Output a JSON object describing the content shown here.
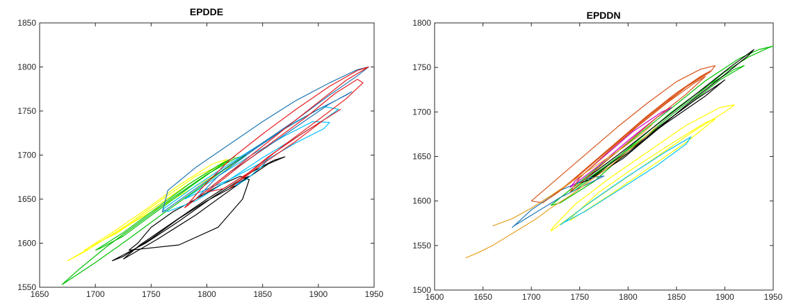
{
  "chart_data": [
    {
      "type": "line",
      "title": "EPDDE",
      "xlabel": "",
      "ylabel": "",
      "xlim": [
        1650,
        1950
      ],
      "ylim": [
        1550,
        1850
      ],
      "xticks": [
        1650,
        1700,
        1750,
        1800,
        1850,
        1900,
        1950
      ],
      "yticks": [
        1550,
        1600,
        1650,
        1700,
        1750,
        1800,
        1850
      ],
      "grid": false,
      "series": [
        {
          "color": "#ffff00",
          "x": [
            1675,
            1700,
            1730,
            1760,
            1790,
            1815,
            1822,
            1800,
            1770,
            1740,
            1710,
            1690,
            1675
          ],
          "y": [
            1580,
            1598,
            1622,
            1650,
            1676,
            1690,
            1688,
            1672,
            1650,
            1628,
            1606,
            1590,
            1580
          ]
        },
        {
          "color": "#ffff00",
          "x": [
            1690,
            1715,
            1745,
            1775,
            1805,
            1818,
            1808,
            1780,
            1750,
            1720,
            1695,
            1690
          ],
          "y": [
            1592,
            1612,
            1638,
            1666,
            1690,
            1695,
            1686,
            1664,
            1638,
            1612,
            1596,
            1592
          ]
        },
        {
          "color": "#00c000",
          "x": [
            1670,
            1700,
            1730,
            1760,
            1790,
            1815,
            1835,
            1825,
            1800,
            1770,
            1740,
            1710,
            1685,
            1670
          ],
          "y": [
            1553,
            1578,
            1605,
            1633,
            1660,
            1683,
            1700,
            1696,
            1678,
            1652,
            1624,
            1596,
            1570,
            1553
          ]
        },
        {
          "color": "#00c000",
          "x": [
            1700,
            1725,
            1755,
            1785,
            1810,
            1825,
            1812,
            1785,
            1755,
            1725,
            1704,
            1700
          ],
          "y": [
            1592,
            1612,
            1640,
            1668,
            1688,
            1698,
            1688,
            1664,
            1636,
            1608,
            1594,
            1592
          ]
        },
        {
          "color": "#000000",
          "x": [
            1715,
            1745,
            1775,
            1805,
            1830,
            1838,
            1825,
            1800,
            1775,
            1750,
            1725,
            1715
          ],
          "y": [
            1580,
            1600,
            1625,
            1652,
            1672,
            1676,
            1665,
            1648,
            1628,
            1605,
            1585,
            1580
          ]
        },
        {
          "color": "#000000",
          "x": [
            1730,
            1775,
            1810,
            1832,
            1838,
            1830,
            1812,
            1790,
            1770,
            1750,
            1738,
            1730
          ],
          "y": [
            1592,
            1598,
            1618,
            1650,
            1672,
            1676,
            1666,
            1650,
            1636,
            1618,
            1600,
            1592
          ]
        },
        {
          "color": "#000000",
          "x": [
            1725,
            1755,
            1790,
            1825,
            1855,
            1870,
            1860,
            1830,
            1800,
            1770,
            1740,
            1725
          ],
          "y": [
            1582,
            1604,
            1632,
            1664,
            1690,
            1698,
            1694,
            1674,
            1650,
            1624,
            1598,
            1582
          ]
        },
        {
          "color": "#00bfff",
          "x": [
            1760,
            1790,
            1820,
            1850,
            1880,
            1905,
            1918,
            1905,
            1880,
            1850,
            1820,
            1790,
            1765,
            1760
          ],
          "y": [
            1638,
            1665,
            1690,
            1714,
            1738,
            1755,
            1752,
            1740,
            1720,
            1697,
            1672,
            1648,
            1636,
            1638
          ]
        },
        {
          "color": "#00bfff",
          "x": [
            1780,
            1810,
            1840,
            1870,
            1895,
            1910,
            1905,
            1880,
            1850,
            1820,
            1790,
            1780
          ],
          "y": [
            1650,
            1676,
            1700,
            1722,
            1738,
            1737,
            1730,
            1714,
            1692,
            1672,
            1656,
            1650
          ]
        },
        {
          "color": "#00bfff",
          "x": [
            1825,
            1845,
            1855,
            1850,
            1835,
            1825
          ],
          "y": [
            1665,
            1688,
            1695,
            1688,
            1672,
            1665
          ]
        },
        {
          "color": "#1f77b4",
          "x": [
            1760,
            1790,
            1820,
            1850,
            1880,
            1910,
            1935,
            1945,
            1935,
            1910,
            1880,
            1850,
            1820,
            1790,
            1765,
            1760
          ],
          "y": [
            1635,
            1662,
            1688,
            1714,
            1740,
            1768,
            1790,
            1800,
            1797,
            1782,
            1762,
            1738,
            1712,
            1686,
            1660,
            1635
          ]
        },
        {
          "color": "#1f77b4",
          "x": [
            1790,
            1820,
            1850,
            1880,
            1910,
            1930,
            1925,
            1900,
            1870,
            1840,
            1810,
            1790
          ],
          "y": [
            1650,
            1680,
            1706,
            1732,
            1758,
            1772,
            1768,
            1752,
            1730,
            1704,
            1676,
            1650
          ]
        },
        {
          "color": "#e41a1c",
          "x": [
            1780,
            1810,
            1840,
            1870,
            1900,
            1925,
            1945,
            1935,
            1910,
            1880,
            1850,
            1820,
            1795,
            1780
          ],
          "y": [
            1640,
            1670,
            1700,
            1730,
            1760,
            1785,
            1800,
            1796,
            1778,
            1752,
            1724,
            1694,
            1662,
            1640
          ]
        },
        {
          "color": "#e41a1c",
          "x": [
            1800,
            1830,
            1860,
            1890,
            1915,
            1935,
            1940,
            1925,
            1900,
            1870,
            1840,
            1815,
            1800
          ],
          "y": [
            1658,
            1688,
            1716,
            1744,
            1770,
            1786,
            1782,
            1764,
            1740,
            1712,
            1682,
            1662,
            1658
          ]
        },
        {
          "color": "#e41a1c",
          "x": [
            1820,
            1850,
            1880,
            1905,
            1920,
            1910,
            1885,
            1855,
            1830,
            1820
          ],
          "y": [
            1662,
            1690,
            1716,
            1740,
            1752,
            1744,
            1724,
            1698,
            1672,
            1662
          ]
        }
      ]
    },
    {
      "type": "line",
      "title": "EPDDN",
      "xlabel": "",
      "ylabel": "",
      "xlim": [
        1600,
        1950
      ],
      "ylim": [
        1500,
        1800
      ],
      "xticks": [
        1600,
        1650,
        1700,
        1750,
        1800,
        1850,
        1900,
        1950
      ],
      "yticks": [
        1500,
        1550,
        1600,
        1650,
        1700,
        1750,
        1800
      ],
      "grid": false,
      "series": [
        {
          "color": "#00c000",
          "x": [
            1720,
            1760,
            1800,
            1840,
            1880,
            1915,
            1935,
            1950,
            1945,
            1925,
            1900,
            1870,
            1835,
            1800,
            1765,
            1730,
            1720
          ],
          "y": [
            1595,
            1630,
            1665,
            1700,
            1735,
            1760,
            1770,
            1774,
            1772,
            1762,
            1745,
            1718,
            1688,
            1656,
            1622,
            1598,
            1595
          ]
        },
        {
          "color": "#00c000",
          "x": [
            1740,
            1780,
            1820,
            1860,
            1895,
            1920,
            1910,
            1880,
            1845,
            1810,
            1775,
            1745,
            1740
          ],
          "y": [
            1610,
            1642,
            1674,
            1706,
            1736,
            1752,
            1748,
            1728,
            1700,
            1668,
            1636,
            1612,
            1610
          ]
        },
        {
          "color": "#000000",
          "x": [
            1750,
            1790,
            1830,
            1870,
            1905,
            1930,
            1925,
            1900,
            1865,
            1830,
            1795,
            1760,
            1750
          ],
          "y": [
            1620,
            1652,
            1686,
            1720,
            1750,
            1770,
            1764,
            1742,
            1712,
            1680,
            1648,
            1624,
            1620
          ]
        },
        {
          "color": "#000000",
          "x": [
            1760,
            1800,
            1840,
            1880,
            1900,
            1895,
            1870,
            1835,
            1800,
            1770,
            1760
          ],
          "y": [
            1625,
            1656,
            1688,
            1718,
            1736,
            1732,
            1714,
            1686,
            1654,
            1630,
            1625
          ]
        },
        {
          "color": "#ffff00",
          "x": [
            1720,
            1750,
            1790,
            1830,
            1870,
            1900,
            1910,
            1895,
            1860,
            1820,
            1780,
            1745,
            1722,
            1720
          ],
          "y": [
            1566,
            1590,
            1620,
            1650,
            1680,
            1700,
            1708,
            1705,
            1685,
            1655,
            1625,
            1596,
            1570,
            1566
          ]
        },
        {
          "color": "#ffff00",
          "x": [
            1740,
            1780,
            1820,
            1860,
            1890,
            1880,
            1850,
            1810,
            1770,
            1742,
            1740
          ],
          "y": [
            1578,
            1606,
            1636,
            1666,
            1692,
            1688,
            1668,
            1640,
            1610,
            1582,
            1578
          ]
        },
        {
          "color": "#00bfff",
          "x": [
            1730,
            1760,
            1800,
            1840,
            1865,
            1860,
            1830,
            1790,
            1755,
            1732,
            1730
          ],
          "y": [
            1573,
            1598,
            1628,
            1656,
            1672,
            1664,
            1640,
            1612,
            1588,
            1575,
            1573
          ]
        },
        {
          "color": "#1f77b4",
          "x": [
            1680,
            1700,
            1730,
            1760,
            1775,
            1760,
            1730,
            1700,
            1682,
            1680
          ],
          "y": [
            1570,
            1590,
            1612,
            1626,
            1628,
            1620,
            1604,
            1584,
            1572,
            1570
          ]
        },
        {
          "color": "#cc00cc",
          "x": [
            1740,
            1770,
            1800,
            1830,
            1845,
            1835,
            1805,
            1775,
            1745,
            1740
          ],
          "y": [
            1615,
            1640,
            1668,
            1694,
            1705,
            1700,
            1678,
            1650,
            1622,
            1615
          ]
        },
        {
          "color": "#d95319",
          "x": [
            1700,
            1730,
            1760,
            1790,
            1820,
            1850,
            1875,
            1890,
            1885,
            1860,
            1830,
            1800,
            1770,
            1740,
            1712,
            1700
          ],
          "y": [
            1600,
            1628,
            1656,
            1684,
            1710,
            1734,
            1748,
            1752,
            1745,
            1728,
            1702,
            1676,
            1648,
            1620,
            1598,
            1600
          ]
        },
        {
          "color": "#d95319",
          "x": [
            1720,
            1750,
            1780,
            1810,
            1840,
            1870,
            1885,
            1875,
            1848,
            1818,
            1788,
            1758,
            1728,
            1720
          ],
          "y": [
            1604,
            1630,
            1658,
            1686,
            1712,
            1736,
            1746,
            1740,
            1720,
            1694,
            1666,
            1638,
            1610,
            1604
          ]
        },
        {
          "color": "#d95319",
          "x": [
            1740,
            1770,
            1800,
            1830,
            1860,
            1880,
            1868,
            1840,
            1810,
            1780,
            1750,
            1740
          ],
          "y": [
            1610,
            1638,
            1666,
            1694,
            1720,
            1740,
            1732,
            1710,
            1684,
            1656,
            1626,
            1610
          ]
        },
        {
          "color": "#e6a020",
          "x": [
            1632,
            1645,
            1660,
            1675,
            1690,
            1705,
            1720,
            1740,
            1760,
            1780,
            1800,
            1820,
            1830
          ],
          "y": [
            1536,
            1542,
            1550,
            1560,
            1570,
            1580,
            1592,
            1606,
            1622,
            1638,
            1656,
            1674,
            1684
          ]
        },
        {
          "color": "#e6a020",
          "x": [
            1660,
            1680,
            1700,
            1720,
            1745,
            1770,
            1795,
            1815,
            1825
          ],
          "y": [
            1572,
            1580,
            1592,
            1606,
            1624,
            1642,
            1660,
            1676,
            1686
          ]
        }
      ]
    }
  ]
}
